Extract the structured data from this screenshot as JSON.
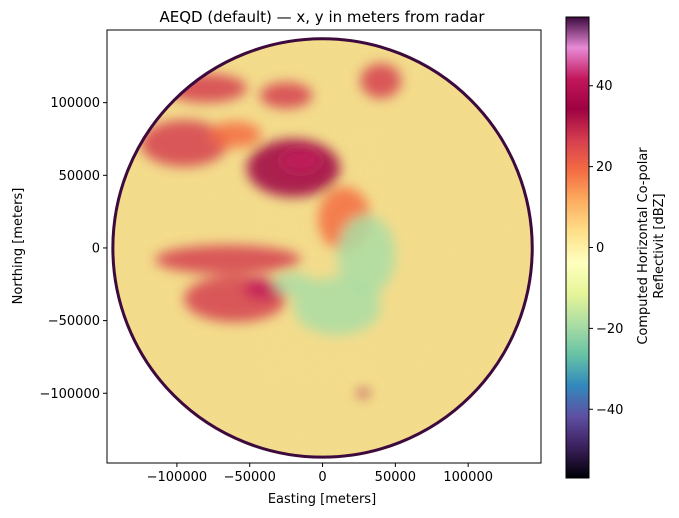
{
  "chart_data": {
    "type": "heatmap",
    "title": "AEQD (default) — x, y in meters from radar",
    "xlabel": "Easting [meters]",
    "ylabel": "Northing [meters]",
    "xlim": [
      -148000,
      150000
    ],
    "ylim": [
      -148000,
      150000
    ],
    "xticks": [
      -100000,
      -50000,
      0,
      50000,
      100000
    ],
    "xtick_labels": [
      "−100000",
      "−50000",
      "0",
      "50000",
      "100000"
    ],
    "yticks": [
      -100000,
      -50000,
      0,
      50000,
      100000
    ],
    "ytick_labels": [
      "−100000",
      "−50000",
      "0",
      "50000",
      "100000"
    ],
    "radar_range": 145000,
    "grid": false,
    "colorbar": {
      "label_line1": "Computed Horizontal Co-polar",
      "label_line2": "Reflectivit [dBZ]",
      "range": [
        -57,
        57
      ],
      "ticks": [
        -40,
        -20,
        0,
        20,
        40
      ],
      "tick_labels": [
        "−40",
        "−20",
        "0",
        "20",
        "40"
      ],
      "colormap": "Spectral_r",
      "stops": [
        "#000004",
        "#3b1f5c",
        "#5e4fa2",
        "#3288bd",
        "#66c2a5",
        "#abdda4",
        "#e6f598",
        "#ffffbf",
        "#fee08b",
        "#fdae61",
        "#f46d43",
        "#d53e4f",
        "#9e0142",
        "#c2185b",
        "#e88ad6",
        "#3d0a3f"
      ]
    },
    "background_level_dBZ": 2,
    "echo_regions": [
      {
        "cx": -20000,
        "cy": 55000,
        "rx": 32000,
        "ry": 20000,
        "dbz": 32
      },
      {
        "cx": -15000,
        "cy": 60000,
        "rx": 14000,
        "ry": 8000,
        "dbz": 44
      },
      {
        "cx": -95000,
        "cy": 72000,
        "rx": 30000,
        "ry": 16000,
        "dbz": 28
      },
      {
        "cx": -60000,
        "cy": 78000,
        "rx": 18000,
        "ry": 9000,
        "dbz": 22
      },
      {
        "cx": -80000,
        "cy": 110000,
        "rx": 28000,
        "ry": 10000,
        "dbz": 26
      },
      {
        "cx": -25000,
        "cy": 105000,
        "rx": 18000,
        "ry": 9000,
        "dbz": 24
      },
      {
        "cx": 40000,
        "cy": 115000,
        "rx": 14000,
        "ry": 12000,
        "dbz": 24
      },
      {
        "cx": -65000,
        "cy": -8000,
        "rx": 50000,
        "ry": 10000,
        "dbz": 30
      },
      {
        "cx": -60000,
        "cy": -35000,
        "rx": 35000,
        "ry": 16000,
        "dbz": 30
      },
      {
        "cx": -40000,
        "cy": -28000,
        "rx": 14000,
        "ry": 7000,
        "dbz": 42
      },
      {
        "cx": 15000,
        "cy": 20000,
        "rx": 18000,
        "ry": 22000,
        "dbz": 20
      },
      {
        "cx": 30000,
        "cy": -5000,
        "rx": 20000,
        "ry": 28000,
        "dbz": -18
      },
      {
        "cx": 10000,
        "cy": -40000,
        "rx": 30000,
        "ry": 20000,
        "dbz": -16
      },
      {
        "cx": -20000,
        "cy": -25000,
        "rx": 14000,
        "ry": 8000,
        "dbz": -22
      },
      {
        "cx": 28000,
        "cy": -100000,
        "rx": 4000,
        "ry": 2500,
        "dbz": 34
      }
    ]
  }
}
